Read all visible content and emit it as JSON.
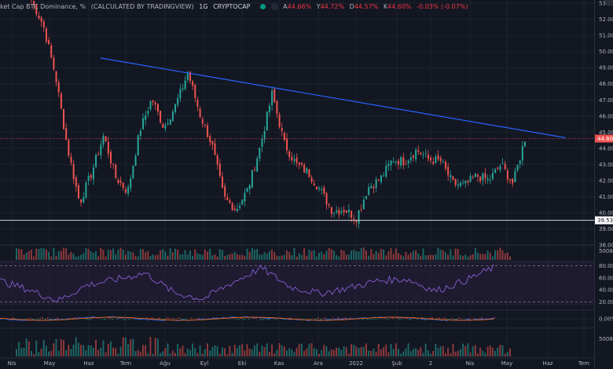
{
  "header": {
    "title": "ket Cap BTC Dominance, %",
    "calc": "(CALCULATED BY TRADINGVIEW)",
    "timeframe": "1G",
    "exchange": "CRYPTOCAP",
    "ohlc": [
      {
        "label": "A",
        "value": "44.66%"
      },
      {
        "label": "Y",
        "value": "44.72%"
      },
      {
        "label": "D",
        "value": "44.57%"
      },
      {
        "label": "K",
        "value": "44.60%"
      },
      {
        "label": "",
        "value": "-0.03% (-0.07%)"
      }
    ]
  },
  "colors": {
    "background": "#131722",
    "grid": "#1e222d",
    "up": "#26a69a",
    "down": "#ef5350",
    "trendline": "#2962ff",
    "support": "#d1d4dc",
    "rsi": "#7e57c2",
    "rsi_band": "#2a1f3d"
  },
  "chart_data": [
    {
      "type": "candlestick",
      "title": "Market Cap BTC Dominance, %",
      "ylim": [
        38.0,
        53.2
      ],
      "y_ticks": [
        "53.00",
        "52.00",
        "51.00",
        "50.00",
        "49.00",
        "48.00",
        "47.00",
        "46.00",
        "45.00",
        "44.00",
        "43.00",
        "42.00",
        "41.00",
        "40.00",
        "39.00",
        "38.00"
      ],
      "x_ticks": [
        "Nis",
        "May",
        "Haz",
        "Tem",
        "Ağu",
        "Eyl",
        "Eki",
        "Kas",
        "Ara",
        "2022",
        "Şub",
        "2",
        "Nis",
        "May",
        "Haz",
        "Tem"
      ],
      "last_price_label": "44.60",
      "support_label": "39.53",
      "support_level": 39.53,
      "trendline": {
        "from": {
          "x": "Haz",
          "y": 49.6
        },
        "to": {
          "x": "Haz 2022",
          "y": 44.65
        }
      },
      "keypoints": [
        {
          "x": "Nis",
          "y": 53.2
        },
        {
          "x": "Nis",
          "y": 51.6
        },
        {
          "x": "May",
          "y": 48.5
        },
        {
          "x": "May",
          "y": 44.0
        },
        {
          "x": "May",
          "y": 40.6
        },
        {
          "x": "Haz",
          "y": 42.5
        },
        {
          "x": "Haz",
          "y": 44.8
        },
        {
          "x": "Haz",
          "y": 42.2
        },
        {
          "x": "Haz",
          "y": 41.3
        },
        {
          "x": "Tem",
          "y": 45.1
        },
        {
          "x": "Tem",
          "y": 47.1
        },
        {
          "x": "Tem",
          "y": 45.3
        },
        {
          "x": "Ağu",
          "y": 46.7
        },
        {
          "x": "Ağu",
          "y": 48.7
        },
        {
          "x": "Ağu",
          "y": 46.1
        },
        {
          "x": "Eyl",
          "y": 44.2
        },
        {
          "x": "Eyl",
          "y": 40.9
        },
        {
          "x": "Eyl",
          "y": 40.2
        },
        {
          "x": "Eki",
          "y": 41.5
        },
        {
          "x": "Eki",
          "y": 44.1
        },
        {
          "x": "Eki",
          "y": 47.4
        },
        {
          "x": "Kas",
          "y": 44.3
        },
        {
          "x": "Kas",
          "y": 43.0
        },
        {
          "x": "Kas",
          "y": 42.5
        },
        {
          "x": "Ara",
          "y": 41.4
        },
        {
          "x": "Ara",
          "y": 40.1
        },
        {
          "x": "2022",
          "y": 40.2
        },
        {
          "x": "2022",
          "y": 39.7
        },
        {
          "x": "2022",
          "y": 41.6
        },
        {
          "x": "Şub",
          "y": 42.1
        },
        {
          "x": "Şub",
          "y": 43.3
        },
        {
          "x": "2",
          "y": 43.2
        },
        {
          "x": "2",
          "y": 43.9
        },
        {
          "x": "2",
          "y": 43.3
        },
        {
          "x": "Nis",
          "y": 43.2
        },
        {
          "x": "Nis",
          "y": 41.8
        },
        {
          "x": "Nis",
          "y": 41.7
        },
        {
          "x": "May",
          "y": 42.3
        },
        {
          "x": "May",
          "y": 42.0
        },
        {
          "x": "May",
          "y": 43.0
        },
        {
          "x": "May",
          "y": 41.8
        },
        {
          "x": "May",
          "y": 44.6
        }
      ]
    },
    {
      "type": "bar",
      "ylabel": "",
      "ytick": "5008",
      "ylim": [
        0,
        10000
      ],
      "description": "volume"
    },
    {
      "type": "line",
      "ylim": [
        0,
        100
      ],
      "y_ticks": [
        "80.00",
        "60.00",
        "40.00",
        "20.00"
      ],
      "band": [
        20,
        80
      ],
      "keypoints": [
        {
          "x": "Nis",
          "y": 55
        },
        {
          "x": "May",
          "y": 40
        },
        {
          "x": "May",
          "y": 22
        },
        {
          "x": "Haz",
          "y": 48
        },
        {
          "x": "Tem",
          "y": 57
        },
        {
          "x": "Ağu",
          "y": 68
        },
        {
          "x": "Eyl",
          "y": 35
        },
        {
          "x": "Eyl",
          "y": 25
        },
        {
          "x": "Eki",
          "y": 52
        },
        {
          "x": "Eki",
          "y": 76
        },
        {
          "x": "Kas",
          "y": 45
        },
        {
          "x": "Ara",
          "y": 34
        },
        {
          "x": "2022",
          "y": 43
        },
        {
          "x": "Şub",
          "y": 55
        },
        {
          "x": "2",
          "y": 58
        },
        {
          "x": "Nis",
          "y": 38
        },
        {
          "x": "May",
          "y": 55
        },
        {
          "x": "May",
          "y": 77
        }
      ]
    },
    {
      "type": "line",
      "ylim": [
        -1,
        1
      ],
      "y_ticks": [
        "0.00%"
      ]
    },
    {
      "type": "bar",
      "ytick": "5008",
      "ylim": [
        0,
        10000
      ]
    }
  ]
}
